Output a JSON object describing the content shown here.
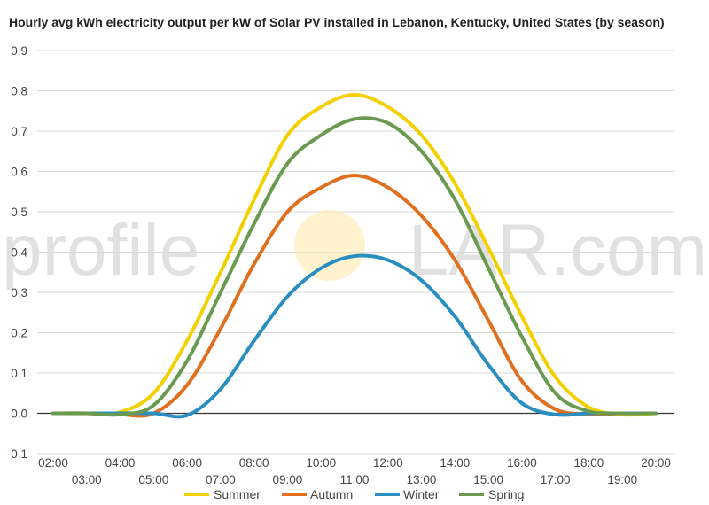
{
  "chart_data": {
    "type": "line",
    "title": "Hourly avg kWh electricity output per kW of Solar PV installed in Lebanon, Kentucky, United States (by season)",
    "xlabel": "",
    "ylabel": "",
    "ylim": [
      -0.1,
      0.9
    ],
    "yticks": [
      -0.1,
      0.0,
      0.1,
      0.2,
      0.3,
      0.4,
      0.5,
      0.6,
      0.7,
      0.8,
      0.9
    ],
    "ytick_labels": [
      "-0.1",
      "0.0",
      "0.1",
      "0.2",
      "0.3",
      "0.4",
      "0.5",
      "0.6",
      "0.7",
      "0.8",
      "0.9"
    ],
    "categories": [
      "02:00",
      "03:00",
      "04:00",
      "05:00",
      "06:00",
      "07:00",
      "08:00",
      "09:00",
      "10:00",
      "11:00",
      "12:00",
      "13:00",
      "14:00",
      "15:00",
      "16:00",
      "17:00",
      "18:00",
      "19:00",
      "20:00"
    ],
    "grid": true,
    "legend": "bottom",
    "series": [
      {
        "name": "Summer",
        "color": "#f5d000",
        "values": [
          0,
          0,
          0.003,
          0.05,
          0.18,
          0.35,
          0.53,
          0.69,
          0.76,
          0.79,
          0.76,
          0.69,
          0.57,
          0.41,
          0.24,
          0.09,
          0.015,
          -0.003,
          0
        ]
      },
      {
        "name": "Autumn",
        "color": "#e07020",
        "values": [
          0,
          0,
          -0.003,
          0.0,
          0.07,
          0.21,
          0.37,
          0.5,
          0.56,
          0.59,
          0.56,
          0.49,
          0.38,
          0.23,
          0.08,
          0.01,
          -0.002,
          0,
          0
        ]
      },
      {
        "name": "Winter",
        "color": "#2a8ec0",
        "values": [
          0,
          0,
          0,
          0,
          -0.005,
          0.06,
          0.18,
          0.29,
          0.36,
          0.39,
          0.38,
          0.33,
          0.24,
          0.12,
          0.025,
          -0.003,
          0,
          0,
          0
        ]
      },
      {
        "name": "Spring",
        "color": "#6a9a50",
        "values": [
          0,
          0,
          -0.003,
          0.02,
          0.13,
          0.3,
          0.47,
          0.62,
          0.69,
          0.73,
          0.72,
          0.65,
          0.53,
          0.36,
          0.19,
          0.05,
          0.005,
          0,
          0
        ]
      }
    ]
  },
  "watermark": {
    "left": "profile",
    "right": "LAR.com"
  },
  "colors": {
    "grid": "#d9d9d9",
    "zero_line": "#333333",
    "text": "#444444",
    "watermark_sun": "#fde9a6"
  }
}
